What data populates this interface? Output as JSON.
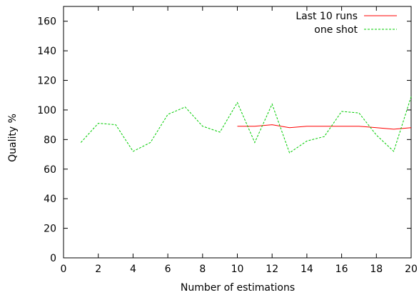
{
  "chart_data": {
    "type": "line",
    "title": "",
    "xlabel": "Number of estimations",
    "ylabel": "Quality %",
    "xlim": [
      0,
      20
    ],
    "ylim": [
      0,
      170
    ],
    "xticks": [
      0,
      2,
      4,
      6,
      8,
      10,
      12,
      14,
      16,
      18,
      20
    ],
    "yticks": [
      0,
      20,
      40,
      60,
      80,
      100,
      120,
      140,
      160
    ],
    "grid": false,
    "legend": "top-right",
    "series": [
      {
        "name": "Last 10 runs",
        "color": "#ff0000",
        "dash": "solid",
        "x": [
          10,
          11,
          12,
          13,
          14,
          15,
          16,
          17,
          18,
          19,
          20
        ],
        "y": [
          89,
          89,
          90,
          88,
          89,
          89,
          89,
          89,
          88,
          87,
          88
        ]
      },
      {
        "name": "one shot",
        "color": "#00cc00",
        "dash": "dashed",
        "x": [
          1,
          2,
          3,
          4,
          5,
          6,
          7,
          8,
          9,
          10,
          11,
          12,
          13,
          14,
          15,
          16,
          17,
          18,
          19,
          20
        ],
        "y": [
          78,
          91,
          90,
          72,
          78,
          97,
          102,
          89,
          85,
          105,
          78,
          104,
          71,
          79,
          82,
          99,
          98,
          83,
          72,
          109
        ]
      }
    ]
  }
}
